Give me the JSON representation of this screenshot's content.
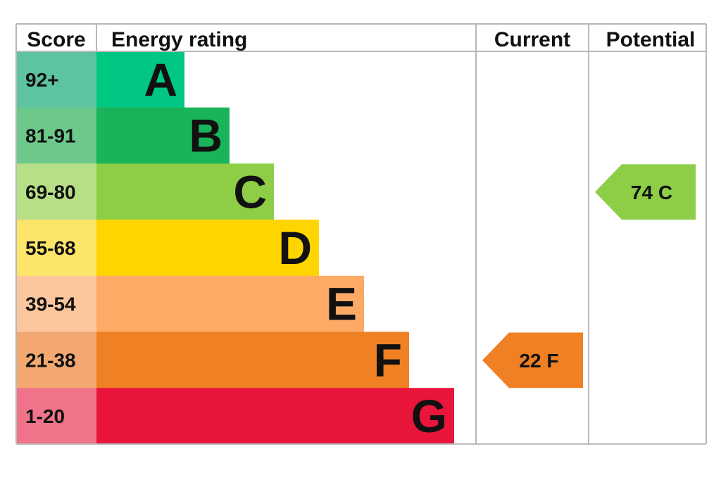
{
  "chart_data": {
    "type": "bar",
    "headers": {
      "score": "Score",
      "rating": "Energy rating",
      "current": "Current",
      "potential": "Potential"
    },
    "bands": [
      {
        "letter": "A",
        "range": "92+",
        "color": "#00c781",
        "score_color": "#5ec4a0"
      },
      {
        "letter": "B",
        "range": "81-91",
        "color": "#19b459",
        "score_color": "#6cc98b"
      },
      {
        "letter": "C",
        "range": "69-80",
        "color": "#8dce46",
        "score_color": "#b6df86"
      },
      {
        "letter": "D",
        "range": "55-68",
        "color": "#ffd500",
        "score_color": "#fde56a"
      },
      {
        "letter": "E",
        "range": "39-54",
        "color": "#fcaa65",
        "score_color": "#fcc79e"
      },
      {
        "letter": "F",
        "range": "21-38",
        "color": "#ef8023",
        "score_color": "#f2a870"
      },
      {
        "letter": "G",
        "range": "1-20",
        "color": "#e9153b",
        "score_color": "#f07489"
      }
    ],
    "current": {
      "value": 22,
      "band": "F",
      "label": "22  F",
      "color": "#ef8023"
    },
    "potential": {
      "value": 74,
      "band": "C",
      "label": "74  C",
      "color": "#8dce46"
    }
  }
}
